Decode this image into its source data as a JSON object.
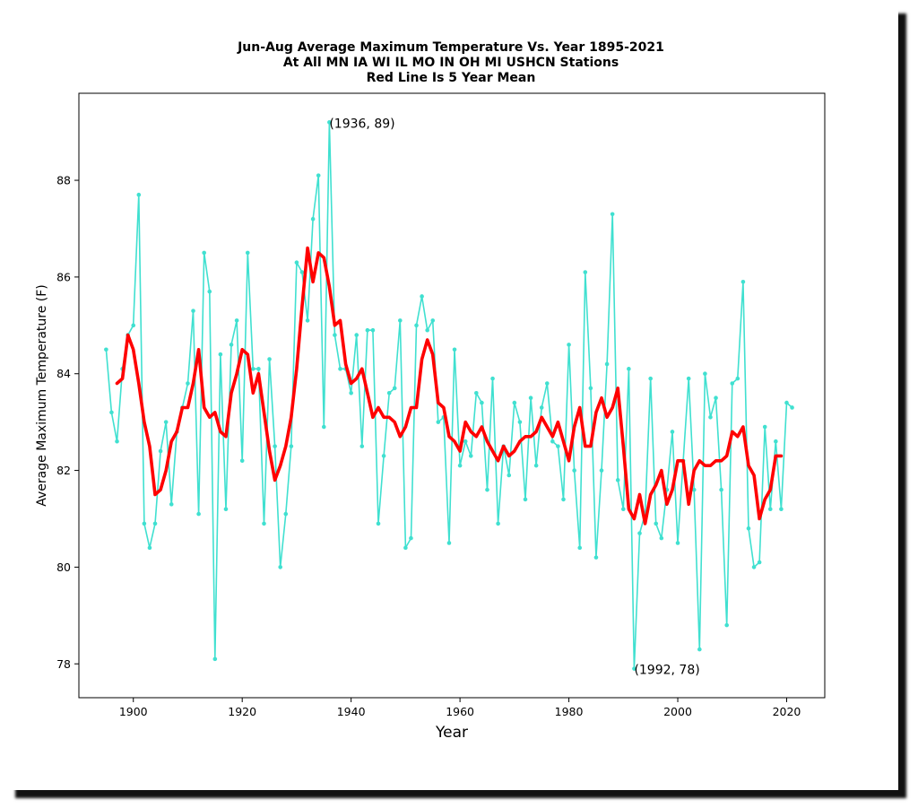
{
  "chart_data": {
    "type": "line",
    "title": [
      "Jun-Aug Average Maximum Temperature Vs. Year 1895-2021",
      "At All MN IA WI IL MO IN OH MI USHCN Stations",
      "Red Line Is 5 Year Mean"
    ],
    "xlabel": "Year",
    "ylabel": "Average Maximum Temperature (F)",
    "xlim": [
      1890,
      2027
    ],
    "ylim": [
      77.3,
      89.8
    ],
    "x_ticks": [
      1900,
      1920,
      1940,
      1960,
      1980,
      2000,
      2020
    ],
    "y_ticks": [
      78,
      80,
      82,
      84,
      86,
      88
    ],
    "grid": false,
    "colors": {
      "annual": "#40e0d0",
      "mean": "#ff0000"
    },
    "series": [
      {
        "style": "line-with-markers",
        "x_start": 1895,
        "values": [
          84.5,
          83.2,
          82.6,
          84.1,
          84.8,
          85.0,
          87.7,
          80.9,
          80.4,
          80.9,
          82.4,
          83.0,
          81.3,
          82.8,
          83.3,
          83.8,
          85.3,
          81.1,
          86.5,
          85.7,
          78.1,
          84.4,
          81.2,
          84.6,
          85.1,
          82.2,
          86.5,
          84.1,
          84.1,
          80.9,
          84.3,
          82.5,
          80.0,
          81.1,
          82.5,
          86.3,
          86.1,
          85.1,
          87.2,
          88.1,
          82.9,
          89.2,
          84.8,
          84.1,
          84.1,
          83.6,
          84.8,
          82.5,
          84.9,
          84.9,
          80.9,
          82.3,
          83.6,
          83.7,
          85.1,
          80.4,
          80.6,
          85.0,
          85.6,
          84.9,
          85.1,
          83.0,
          83.1,
          80.5,
          84.5,
          82.1,
          82.6,
          82.3,
          83.6,
          83.4,
          81.6,
          83.9,
          80.9,
          82.5,
          81.9,
          83.4,
          83.0,
          81.4,
          83.5,
          82.1,
          83.3,
          83.8,
          82.6,
          82.5,
          81.4,
          84.6,
          82.0,
          80.4,
          86.1,
          83.7,
          80.2,
          82.0,
          84.2,
          87.3,
          81.8,
          81.2,
          84.1,
          77.9,
          80.7,
          81.1,
          83.9,
          80.9,
          80.6,
          81.6,
          82.8,
          80.5,
          82.2,
          83.9,
          81.6,
          78.3,
          84.0,
          83.1,
          83.5,
          81.6,
          78.8,
          83.8,
          83.9,
          85.9,
          80.8,
          80.0,
          80.1,
          82.9,
          81.2,
          82.6,
          81.2,
          83.4,
          83.3
        ]
      },
      {
        "style": "thick-line",
        "x_start": 1897,
        "values": [
          83.8,
          83.9,
          84.8,
          84.5,
          83.8,
          83.0,
          82.5,
          81.5,
          81.6,
          82.0,
          82.6,
          82.8,
          83.3,
          83.3,
          83.8,
          84.5,
          83.3,
          83.1,
          83.2,
          82.8,
          82.7,
          83.6,
          84.0,
          84.5,
          84.4,
          83.6,
          84.0,
          83.2,
          82.4,
          81.8,
          82.1,
          82.5,
          83.1,
          84.1,
          85.4,
          86.6,
          85.9,
          86.5,
          86.4,
          85.8,
          85.0,
          85.1,
          84.2,
          83.8,
          83.9,
          84.1,
          83.6,
          83.1,
          83.3,
          83.1,
          83.1,
          83.0,
          82.7,
          82.9,
          83.3,
          83.3,
          84.3,
          84.7,
          84.4,
          83.4,
          83.3,
          82.7,
          82.6,
          82.4,
          83.0,
          82.8,
          82.7,
          82.9,
          82.6,
          82.4,
          82.2,
          82.5,
          82.3,
          82.4,
          82.6,
          82.7,
          82.7,
          82.8,
          83.1,
          82.9,
          82.7,
          83.0,
          82.6,
          82.2,
          82.9,
          83.3,
          82.5,
          82.5,
          83.2,
          83.5,
          83.1,
          83.3,
          83.7,
          82.5,
          81.2,
          81.0,
          81.5,
          80.9,
          81.5,
          81.7,
          82.0,
          81.3,
          81.6,
          82.2,
          82.2,
          81.3,
          82.0,
          82.2,
          82.1,
          82.1,
          82.2,
          82.2,
          82.3,
          82.8,
          82.7,
          82.9,
          82.1,
          81.9,
          81.0,
          81.4,
          81.6,
          82.3,
          82.3
        ]
      }
    ],
    "annotations": [
      {
        "text": "(1936, 89)",
        "x": 1936,
        "y": 89.2
      },
      {
        "text": "(1992, 78)",
        "x": 1992,
        "y": 77.9
      }
    ]
  }
}
